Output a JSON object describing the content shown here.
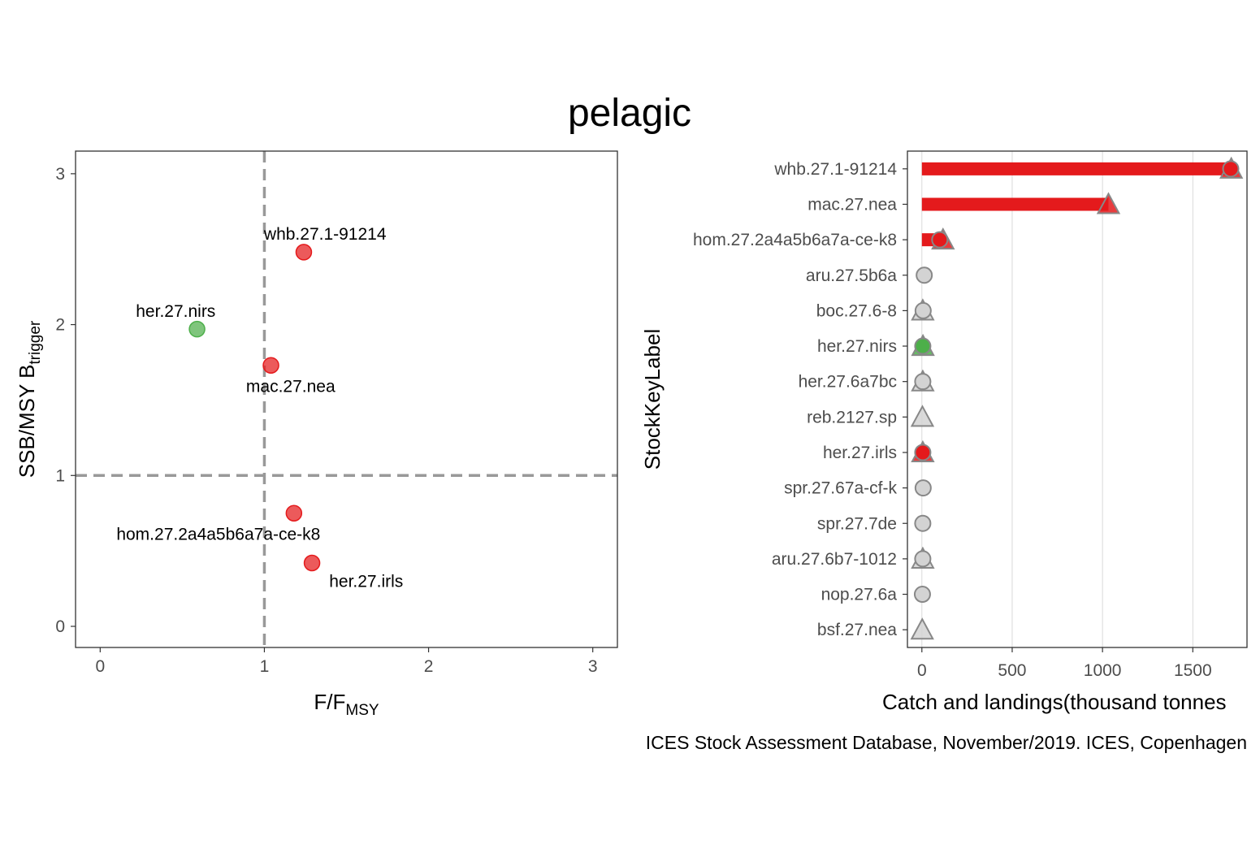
{
  "title": "pelagic",
  "caption": "ICES Stock Assessment Database, November/2019. ICES, Copenhagen",
  "colors": {
    "red": "#e41a1c",
    "green": "#4daf4a",
    "grey": "#d3d3d3",
    "outline": "#888888",
    "refline": "#999999",
    "gridline": "#d9d9d9",
    "axis": "#333333"
  },
  "chart_data": [
    {
      "type": "scatter",
      "xlabel": {
        "main": "F/F",
        "sub": "MSY"
      },
      "ylabel": {
        "main": "SSB/MSY B",
        "sub": "trigger"
      },
      "xlim": [
        -0.15,
        3.15
      ],
      "ylim": [
        -0.14,
        3.15
      ],
      "xticks": [
        "0",
        "1",
        "2",
        "3"
      ],
      "yticks": [
        "0",
        "1",
        "2",
        "3"
      ],
      "reference_lines": {
        "x": 1,
        "y": 1
      },
      "points": [
        {
          "label": "whb.27.1-91214",
          "x": 1.24,
          "y": 2.48,
          "status": "red",
          "label_dx": 0.13,
          "label_dy": 0.12
        },
        {
          "label": "her.27.nirs",
          "x": 0.59,
          "y": 1.97,
          "status": "green",
          "label_dx": -0.13,
          "label_dy": 0.12
        },
        {
          "label": "mac.27.nea",
          "x": 1.04,
          "y": 1.73,
          "status": "red",
          "label_dx": 0.12,
          "label_dy": -0.14
        },
        {
          "label": "hom.27.2a4a5b6a7a-ce-k8",
          "x": 1.18,
          "y": 0.75,
          "status": "red",
          "label_dx": -0.46,
          "label_dy": -0.14
        },
        {
          "label": "her.27.irls",
          "x": 1.29,
          "y": 0.42,
          "status": "red",
          "label_dx": 0.33,
          "label_dy": -0.12
        }
      ]
    },
    {
      "type": "bar",
      "orientation": "horizontal",
      "xlabel": "Catch and landings(thousand tonnes",
      "ylabel": "StockKeyLabel",
      "xlim": [
        -80,
        1800
      ],
      "xticks": [
        0,
        500,
        1000,
        1500
      ],
      "categories": [
        "whb.27.1-91214",
        "mac.27.nea",
        "hom.27.2a4a5b6a7a-ce-k8",
        "aru.27.5b6a",
        "boc.27.6-8",
        "her.27.nirs",
        "her.27.6a7bc",
        "reb.2127.sp",
        "her.27.irls",
        "spr.27.67a-cf-k",
        "spr.27.7de",
        "aru.27.6b7-1012",
        "nop.27.6a",
        "bsf.27.nea"
      ],
      "series": [
        {
          "name": "landings_triangle",
          "values": [
            1713,
            1033,
            117,
            null,
            5,
            6,
            5,
            3,
            5,
            null,
            null,
            5,
            null,
            2
          ]
        },
        {
          "name": "catch_circle",
          "values": [
            1710,
            null,
            99,
            13,
            7,
            5,
            5,
            null,
            5,
            7,
            5,
            5,
            3,
            null
          ]
        }
      ],
      "status": [
        "red",
        "red",
        "red",
        "grey",
        "grey",
        "green",
        "grey",
        "grey",
        "red",
        "grey",
        "grey",
        "grey",
        "grey",
        "grey"
      ]
    }
  ]
}
